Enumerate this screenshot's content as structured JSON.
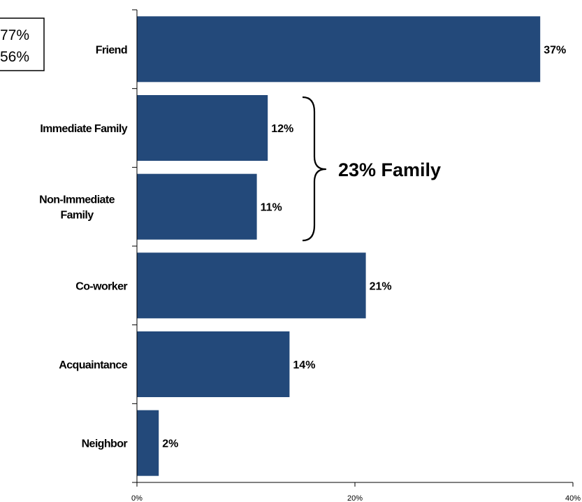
{
  "chart_data": {
    "type": "bar",
    "orientation": "horizontal",
    "categories": [
      [
        "Friend"
      ],
      [
        "Immediate Family"
      ],
      [
        "Non-Immediate",
        "Family"
      ],
      [
        "Co-worker"
      ],
      [
        "Acquaintance"
      ],
      [
        "Neighbor"
      ]
    ],
    "values": [
      37,
      12,
      11,
      21,
      14,
      2
    ],
    "data_labels": [
      "37%",
      "12%",
      "11%",
      "21%",
      "14%",
      "2%"
    ],
    "xlim": [
      0,
      40
    ],
    "x_ticks": [
      0,
      20,
      40
    ],
    "x_tick_labels": [
      "0%",
      "20%",
      "40%"
    ],
    "bar_color": "#23497a",
    "grid": false,
    "annotation": {
      "text": "23% Family",
      "spans_categories": [
        1,
        2
      ]
    },
    "legend_box": {
      "lines": [
        "77%",
        "56%"
      ]
    }
  }
}
